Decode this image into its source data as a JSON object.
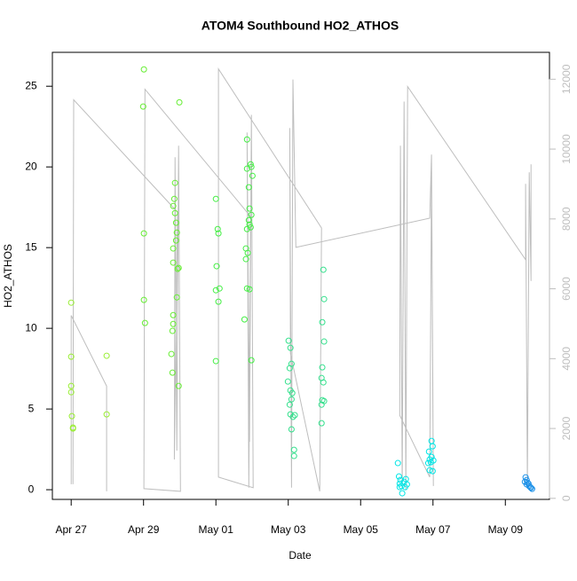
{
  "chart_data": {
    "type": "scatter",
    "title": "ATOM4 Southbound HO2_ATHOS",
    "x_label": "Date",
    "y_label": "HO2_ATHOS",
    "xlim": [
      -0.52,
      13.22
    ],
    "xticks": [
      {
        "value": 0,
        "label": "Apr 27"
      },
      {
        "value": 2,
        "label": "Apr 29"
      },
      {
        "value": 4,
        "label": "May 01"
      },
      {
        "value": 6,
        "label": "May 03"
      },
      {
        "value": 8,
        "label": "May 05"
      },
      {
        "value": 10,
        "label": "May 07"
      },
      {
        "value": 12,
        "label": "May 09"
      }
    ],
    "ylim": [
      -0.6,
      27.1
    ],
    "yticks": [
      0,
      5,
      10,
      15,
      20,
      25
    ],
    "y2lim": [
      -30,
      12770
    ],
    "y2ticks": [
      0,
      2000,
      4000,
      6000,
      8000,
      10000,
      12000
    ],
    "series": [
      {
        "color": "#99ee33",
        "x": [
          0,
          0,
          0,
          0,
          0.02,
          0.05,
          0.05,
          0.98,
          0.98
        ],
        "values": [
          11.59,
          8.24,
          6.43,
          6.04,
          4.56,
          3.85,
          3.79,
          8.3,
          4.67
        ]
      },
      {
        "color": "#66ee33",
        "x": [
          2.01,
          1.99,
          2.01,
          2.01,
          2.04,
          2.99,
          2.87,
          2.85,
          2.82,
          2.87,
          2.9,
          2.92,
          2.9,
          2.82,
          2.82,
          2.97,
          2.94,
          2.92,
          2.82,
          2.82,
          2.8,
          2.77,
          2.8,
          2.97
        ],
        "values": [
          26.04,
          23.74,
          15.88,
          11.76,
          10.33,
          24.0,
          19.01,
          18.02,
          17.58,
          17.14,
          16.54,
          15.93,
          15.44,
          14.95,
          14.07,
          13.74,
          13.68,
          11.92,
          10.82,
          10.27,
          9.84,
          8.41,
          7.25,
          6.43
        ]
      },
      {
        "color": "#44ee44",
        "x": [
          4.0,
          4.05,
          4.07,
          4.02,
          4.0,
          4.1,
          4.07,
          4.0,
          4.86,
          4.96,
          4.98,
          4.86,
          5.01,
          4.91,
          4.93,
          4.98,
          4.91,
          4.93,
          4.86,
          4.96,
          4.83,
          4.88,
          4.83,
          4.86,
          4.93,
          4.79,
          4.98
        ],
        "values": [
          18.02,
          16.15,
          15.88,
          13.85,
          12.36,
          12.47,
          11.65,
          7.97,
          21.7,
          20.16,
          20.0,
          19.89,
          19.45,
          18.74,
          17.42,
          17.03,
          16.7,
          16.43,
          16.15,
          16.26,
          14.95,
          14.67,
          14.29,
          12.47,
          12.42,
          10.55,
          8.02
        ]
      },
      {
        "color": "#33e08c",
        "x": [
          6.01,
          6.06,
          6.04,
          6.09,
          5.99,
          6.06,
          6.11,
          6.04,
          6.09,
          6.06,
          6.13,
          6.18,
          6.09,
          6.16,
          6.16,
          6.97,
          6.99,
          6.94,
          6.99,
          6.94,
          6.92,
          6.97,
          6.94,
          6.92,
          6.99,
          6.92
        ],
        "values": [
          9.23,
          8.79,
          7.53,
          7.8,
          6.7,
          6.15,
          5.99,
          5.27,
          5.6,
          4.67,
          4.51,
          4.62,
          3.74,
          2.47,
          2.09,
          13.63,
          11.81,
          10.38,
          9.18,
          7.58,
          6.92,
          6.65,
          5.55,
          5.27,
          5.49,
          4.12
        ]
      },
      {
        "color": "#00e5e5",
        "x": [
          9.03,
          9.06,
          9.1,
          9.08,
          9.13,
          9.2,
          9.23,
          9.15,
          9.25,
          9.28,
          9.08,
          9.96,
          9.99,
          9.89,
          9.91,
          10.01,
          9.87,
          9.94,
          9.96,
          9.99,
          9.91
        ],
        "values": [
          1.65,
          0.82,
          0.6,
          0.38,
          0.22,
          0.49,
          0.16,
          -0.22,
          0.66,
          0.33,
          0.16,
          3.02,
          2.69,
          2.36,
          1.87,
          1.81,
          1.65,
          1.7,
          2.03,
          1.15,
          1.21
        ]
      },
      {
        "color": "#1a90e8",
        "x": [
          12.56,
          12.59,
          12.54,
          12.61,
          12.64,
          12.59,
          12.66,
          12.71,
          12.69,
          12.74
        ],
        "values": [
          0.77,
          0.6,
          0.49,
          0.44,
          0.38,
          0.33,
          0.22,
          0.11,
          0.16,
          0.05
        ]
      },
      {
        "type": "line",
        "axis": "y2",
        "color": "#bebebe",
        "x": [
          0,
          0,
          0.98,
          0.98,
          null,
          0.05,
          0.07,
          2.94,
          2.85,
          2.87,
          2.92,
          2.97,
          3.02,
          2.01,
          2.04,
          4.96,
          4.91,
          4.86,
          4.93,
          4.98,
          5.03,
          4.07,
          4.07,
          6.92,
          6.87,
          6.06,
          6.04,
          6.09,
          6.13,
          6.21,
          9.91,
          9.96,
          10.01,
          9.96,
          9.91,
          9.08,
          9.1,
          9.15,
          9.2,
          9.25,
          9.3,
          12.56,
          12.56,
          12.61,
          12.66,
          12.71,
          12.71
        ],
        "values": [
          405,
          5237,
          3213,
          202,
          null,
          405,
          11410,
          8197,
          1113,
          9766,
          1366,
          10095,
          202,
          278,
          11714,
          8071,
          304,
          10474,
          1619,
          10980,
          304,
          607,
          12296,
          7742,
          202,
          4149,
          10601,
          304,
          11992,
          7185,
          8020,
          9842,
          354,
          9209,
          607,
          2378,
          10095,
          304,
          11360,
          228,
          11790,
          6831,
          9007,
          354,
          9336,
          6224,
          9563
        ]
      }
    ]
  }
}
